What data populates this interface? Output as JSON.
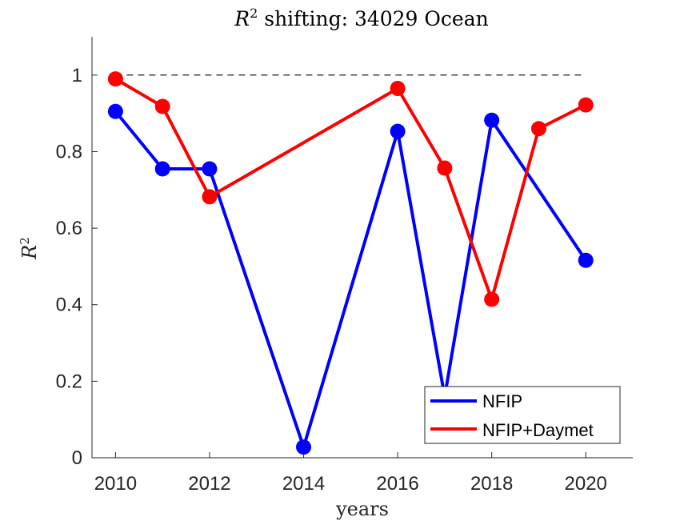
{
  "chart_data": {
    "type": "line",
    "title_main": "R",
    "title_sup": "2",
    "title_rest": " shifting: 34029 Ocean",
    "xlabel": "years",
    "ylabel_main": "R",
    "ylabel_sup": "2",
    "xlim": [
      2009.5,
      2021.0
    ],
    "ylim": [
      0,
      1.1
    ],
    "xticks": [
      2010,
      2012,
      2014,
      2016,
      2018,
      2020
    ],
    "yticks": [
      0,
      0.2,
      0.4,
      0.6,
      0.8,
      1
    ],
    "ytick_labels": [
      "0",
      "0.2",
      "0.4",
      "0.6",
      "0.8",
      "1"
    ],
    "reference_line": {
      "y": 1.0,
      "x": [
        2010,
        2020
      ],
      "style": "dashed"
    },
    "series": [
      {
        "name": "NFIP",
        "color": "#0000ff",
        "x": [
          2010,
          2011,
          2012,
          2014,
          2016,
          2017,
          2018,
          2020
        ],
        "y": [
          0.905,
          0.755,
          0.755,
          0.028,
          0.853,
          0.16,
          0.882,
          0.516
        ]
      },
      {
        "name": "NFIP+Daymet",
        "color": "#ff0000",
        "x": [
          2010,
          2011,
          2012,
          2016,
          2017,
          2018,
          2019,
          2020
        ],
        "y": [
          0.99,
          0.918,
          0.682,
          0.965,
          0.757,
          0.414,
          0.86,
          0.922
        ]
      }
    ],
    "legend_position": "bottom-right"
  }
}
